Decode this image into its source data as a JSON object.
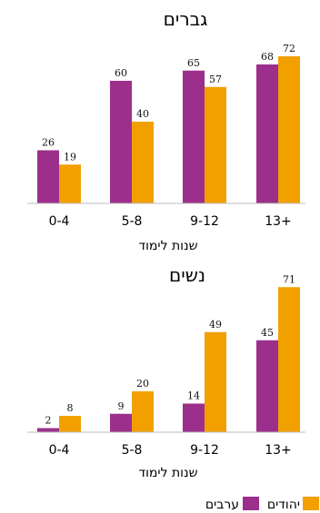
{
  "colors": {
    "arabs": "#9c2f8b",
    "jews": "#f2a000"
  },
  "chart_data": [
    {
      "type": "bar",
      "title": "גברים",
      "xlabel": "שנות לימוד",
      "categories": [
        "0-4",
        "5-8",
        "9-12",
        "13+"
      ],
      "ylim": [
        0,
        80
      ],
      "series": [
        {
          "name": "ערבים",
          "values": [
            26,
            60,
            65,
            68
          ]
        },
        {
          "name": "יהודים",
          "values": [
            19,
            40,
            57,
            72
          ]
        }
      ]
    },
    {
      "type": "bar",
      "title": "נשים",
      "xlabel": "שנות לימוד",
      "categories": [
        "0-4",
        "5-8",
        "9-12",
        "13+"
      ],
      "ylim": [
        0,
        80
      ],
      "series": [
        {
          "name": "ערבים",
          "values": [
            2,
            9,
            14,
            45
          ]
        },
        {
          "name": "יהודים",
          "values": [
            8,
            20,
            49,
            71
          ]
        }
      ]
    }
  ],
  "legend": {
    "arabs": "ערבים",
    "jews": "יהודים"
  }
}
